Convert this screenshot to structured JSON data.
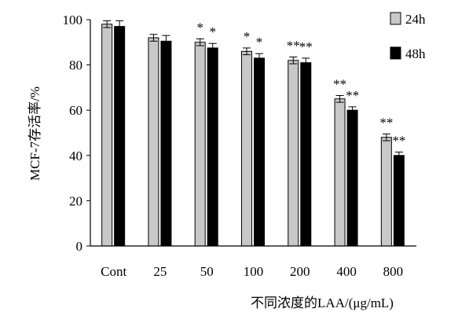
{
  "chart_data": {
    "type": "bar",
    "title": "",
    "xlabel": "不同浓度的LAA/(μg/mL)",
    "ylabel": "MCF-7存活率/%",
    "categories": [
      "Cont",
      "25",
      "50",
      "100",
      "200",
      "400",
      "800"
    ],
    "ylim": [
      0,
      100
    ],
    "yticks": [
      0,
      20,
      40,
      60,
      80,
      100
    ],
    "grid": false,
    "legend_position": "top-right",
    "series": [
      {
        "name": "24h",
        "color": "#c8c8c8",
        "values": [
          98,
          92,
          90,
          86,
          82,
          65,
          48
        ],
        "errors": [
          1.5,
          1.5,
          1.5,
          1.5,
          1.5,
          1.5,
          1.5
        ]
      },
      {
        "name": "48h",
        "color": "#000000",
        "values": [
          97,
          90.5,
          87.5,
          83,
          81,
          60,
          40
        ],
        "errors": [
          2.5,
          2.5,
          2.0,
          2.0,
          2.0,
          1.5,
          1.5
        ]
      }
    ],
    "annotations": [
      {
        "category": "50",
        "series": "24h",
        "text": "*"
      },
      {
        "category": "50",
        "series": "48h",
        "text": "*"
      },
      {
        "category": "100",
        "series": "24h",
        "text": "*"
      },
      {
        "category": "100",
        "series": "48h",
        "text": "*"
      },
      {
        "category": "200",
        "series": "24h",
        "text": "**"
      },
      {
        "category": "200",
        "series": "48h",
        "text": "**"
      },
      {
        "category": "400",
        "series": "24h",
        "text": "**"
      },
      {
        "category": "400",
        "series": "48h",
        "text": "**"
      },
      {
        "category": "800",
        "series": "24h",
        "text": "**"
      },
      {
        "category": "800",
        "series": "48h",
        "text": "**"
      }
    ]
  }
}
